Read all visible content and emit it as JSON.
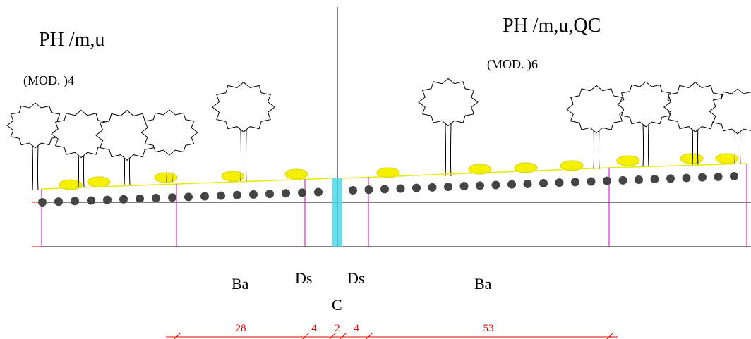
{
  "left": {
    "title": "PH /m,u",
    "module": "(MOD. )4"
  },
  "right": {
    "title": "PH /m,u,QC",
    "module": "(MOD. )6"
  },
  "zones": [
    "Ba",
    "Ds",
    "Ds",
    "Ba"
  ],
  "center": "C",
  "dimensions": [
    "28",
    "4",
    "2",
    "4",
    "53"
  ]
}
